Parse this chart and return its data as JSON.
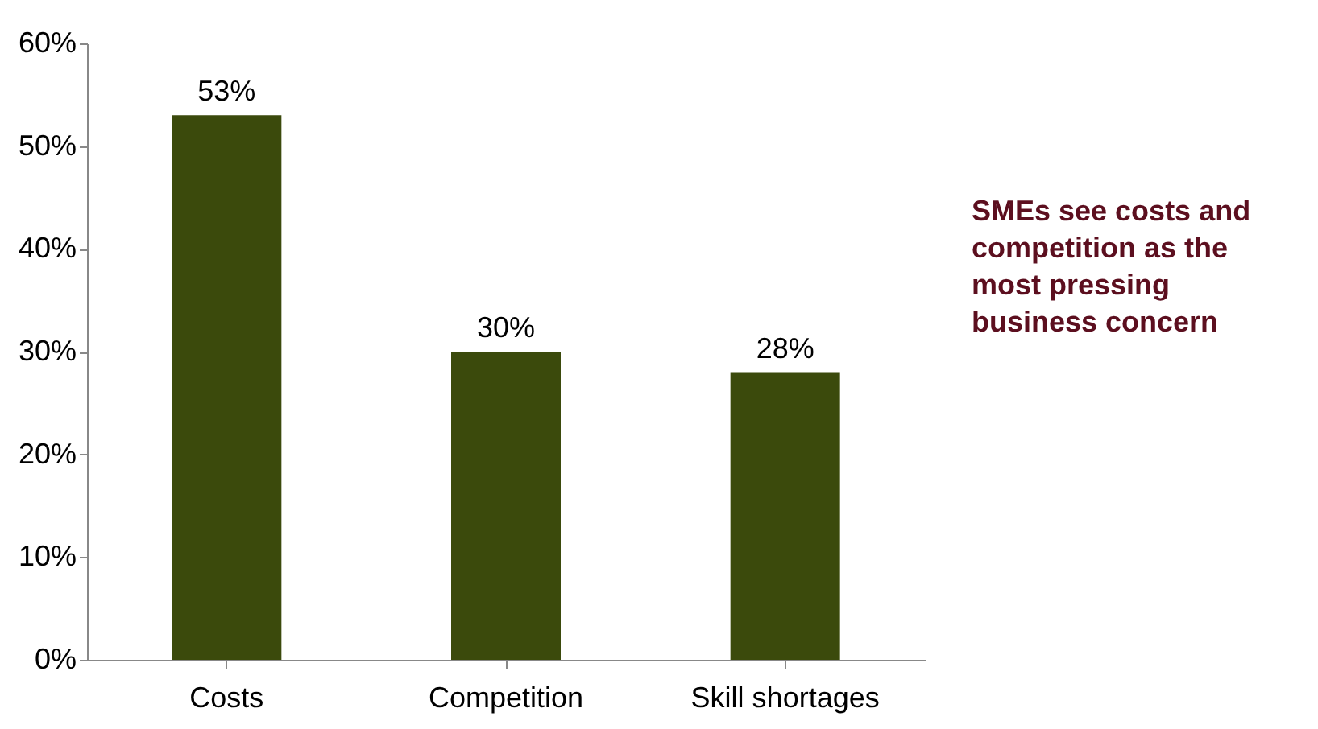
{
  "chart_data": {
    "type": "bar",
    "categories": [
      "Costs",
      "Competition",
      "Skill shortages"
    ],
    "values": [
      53,
      30,
      28
    ],
    "color": "#3b4a0c",
    "data_labels": true,
    "value_labels": [
      "53%",
      "30%",
      "28%"
    ],
    "ylim": [
      0,
      60
    ],
    "yticks": [
      {
        "value": 0,
        "label": "0%"
      },
      {
        "value": 10,
        "label": "10%"
      },
      {
        "value": 20,
        "label": "20%"
      },
      {
        "value": 30,
        "label": "30%"
      },
      {
        "value": 40,
        "label": "40%"
      },
      {
        "value": 50,
        "label": "50%"
      },
      {
        "value": 60,
        "label": "60%"
      }
    ],
    "grid": false,
    "annotations": [
      "SMEs see costs and competition as the most pressing business concern"
    ]
  }
}
